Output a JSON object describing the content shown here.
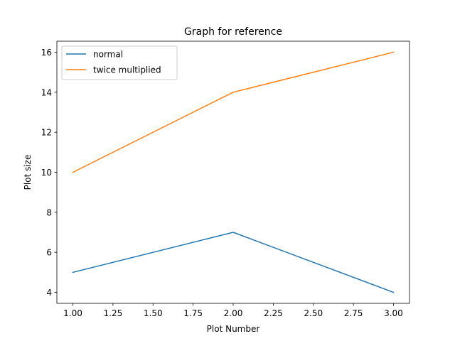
{
  "chart_data": {
    "type": "line",
    "title": "Graph for reference",
    "xlabel": "Plot Number",
    "ylabel": "Plot size",
    "x": [
      1,
      2,
      3
    ],
    "series": [
      {
        "name": "normal",
        "values": [
          5,
          7,
          4
        ],
        "color": "#1f77b4"
      },
      {
        "name": "twice multiplied",
        "values": [
          10,
          14,
          16
        ],
        "color": "#ff7f0e"
      }
    ],
    "xlim": [
      0.9,
      3.1
    ],
    "ylim": [
      3.45,
      16.55
    ],
    "xticks": [
      "1.00",
      "1.25",
      "1.50",
      "1.75",
      "2.00",
      "2.25",
      "2.50",
      "2.75",
      "3.00"
    ],
    "yticks": [
      "4",
      "6",
      "8",
      "10",
      "12",
      "14",
      "16"
    ],
    "grid": false,
    "legend_position": "top-left"
  }
}
